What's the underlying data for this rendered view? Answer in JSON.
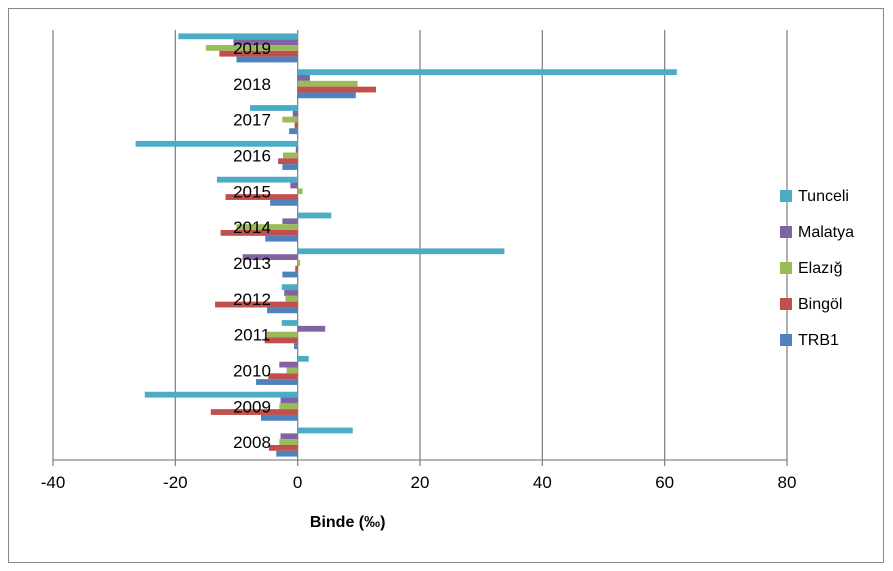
{
  "chart_data": {
    "type": "bar",
    "orientation": "horizontal",
    "title": "",
    "xlabel": "Binde (‰)",
    "ylabel": "",
    "xlim": [
      -40,
      80
    ],
    "xticks": [
      -40,
      -20,
      0,
      20,
      40,
      60,
      80
    ],
    "grid": true,
    "legend_position": "right",
    "categories": [
      "2019",
      "2018",
      "2017",
      "2016",
      "2015",
      "2014",
      "2013",
      "2012",
      "2011",
      "2010",
      "2009",
      "2008"
    ],
    "series": [
      {
        "name": "Tunceli",
        "color": "#4BACC6",
        "values": [
          -19.5,
          62,
          -7.8,
          -26.5,
          -13.2,
          5.5,
          33.8,
          -2.6,
          -2.6,
          1.8,
          -25,
          9
        ]
      },
      {
        "name": "Malatya",
        "color": "#8064A2",
        "values": [
          -10.5,
          2,
          -0.8,
          -0.3,
          -1.2,
          -2.5,
          -9,
          -2.2,
          4.5,
          -3,
          -2.8,
          -2.8
        ]
      },
      {
        "name": "Elazığ",
        "color": "#9BBB59",
        "values": [
          -15,
          9.8,
          -2.5,
          -2.4,
          0.8,
          -10,
          0.4,
          -2,
          -5,
          -1.8,
          -3,
          -3
        ]
      },
      {
        "name": "Bingöl",
        "color": "#C0504D",
        "values": [
          -12.8,
          12.8,
          -0.5,
          -3.2,
          -11.8,
          -12.6,
          -0.4,
          -13.5,
          -5.4,
          -4.8,
          -14.2,
          -4.7
        ]
      },
      {
        "name": "TRB1",
        "color": "#4F81BD",
        "values": [
          -10,
          9.5,
          -1.4,
          -2.5,
          -4.5,
          -5.3,
          -2.5,
          -5,
          -0.6,
          -6.8,
          -6,
          -3.5
        ]
      }
    ]
  }
}
